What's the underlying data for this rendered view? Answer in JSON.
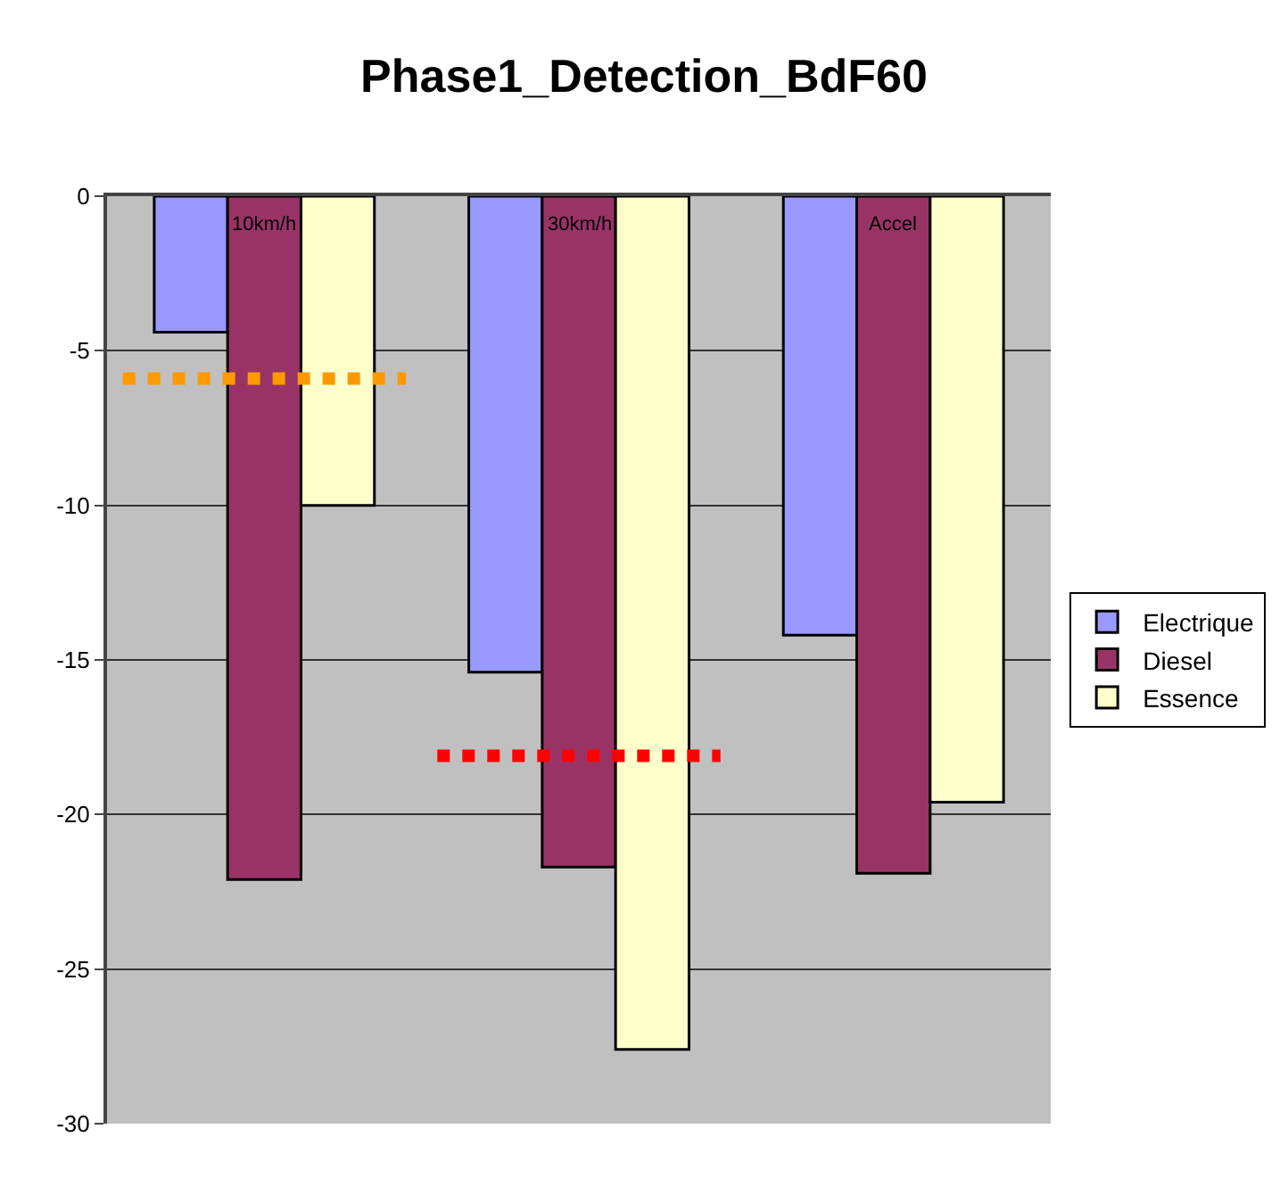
{
  "chart_data": {
    "type": "bar",
    "title": "Phase1_Detection_BdF60",
    "categories": [
      "10km/h",
      "30km/h",
      "Accel"
    ],
    "series": [
      {
        "name": "Electrique",
        "color": "#9999ff",
        "values": [
          -4.4,
          -15.4,
          -14.2
        ]
      },
      {
        "name": "Diesel",
        "color": "#993366",
        "values": [
          -22.1,
          -21.7,
          -21.9
        ]
      },
      {
        "name": "Essence",
        "color": "#ffffcc",
        "values": [
          -10.0,
          -27.6,
          -19.6
        ]
      }
    ],
    "ylim": [
      -30,
      0
    ],
    "yticks": [
      -30,
      -25,
      -20,
      -15,
      -10,
      -5,
      0
    ],
    "grid": "y",
    "legend": "right",
    "ref_lines": [
      {
        "axis": "y",
        "value": -5.9,
        "color": "#ff9900",
        "line_style": "dotted"
      },
      {
        "axis": "y",
        "value": -18.1,
        "color": "#ff0000",
        "line_style": "dotted"
      }
    ]
  }
}
